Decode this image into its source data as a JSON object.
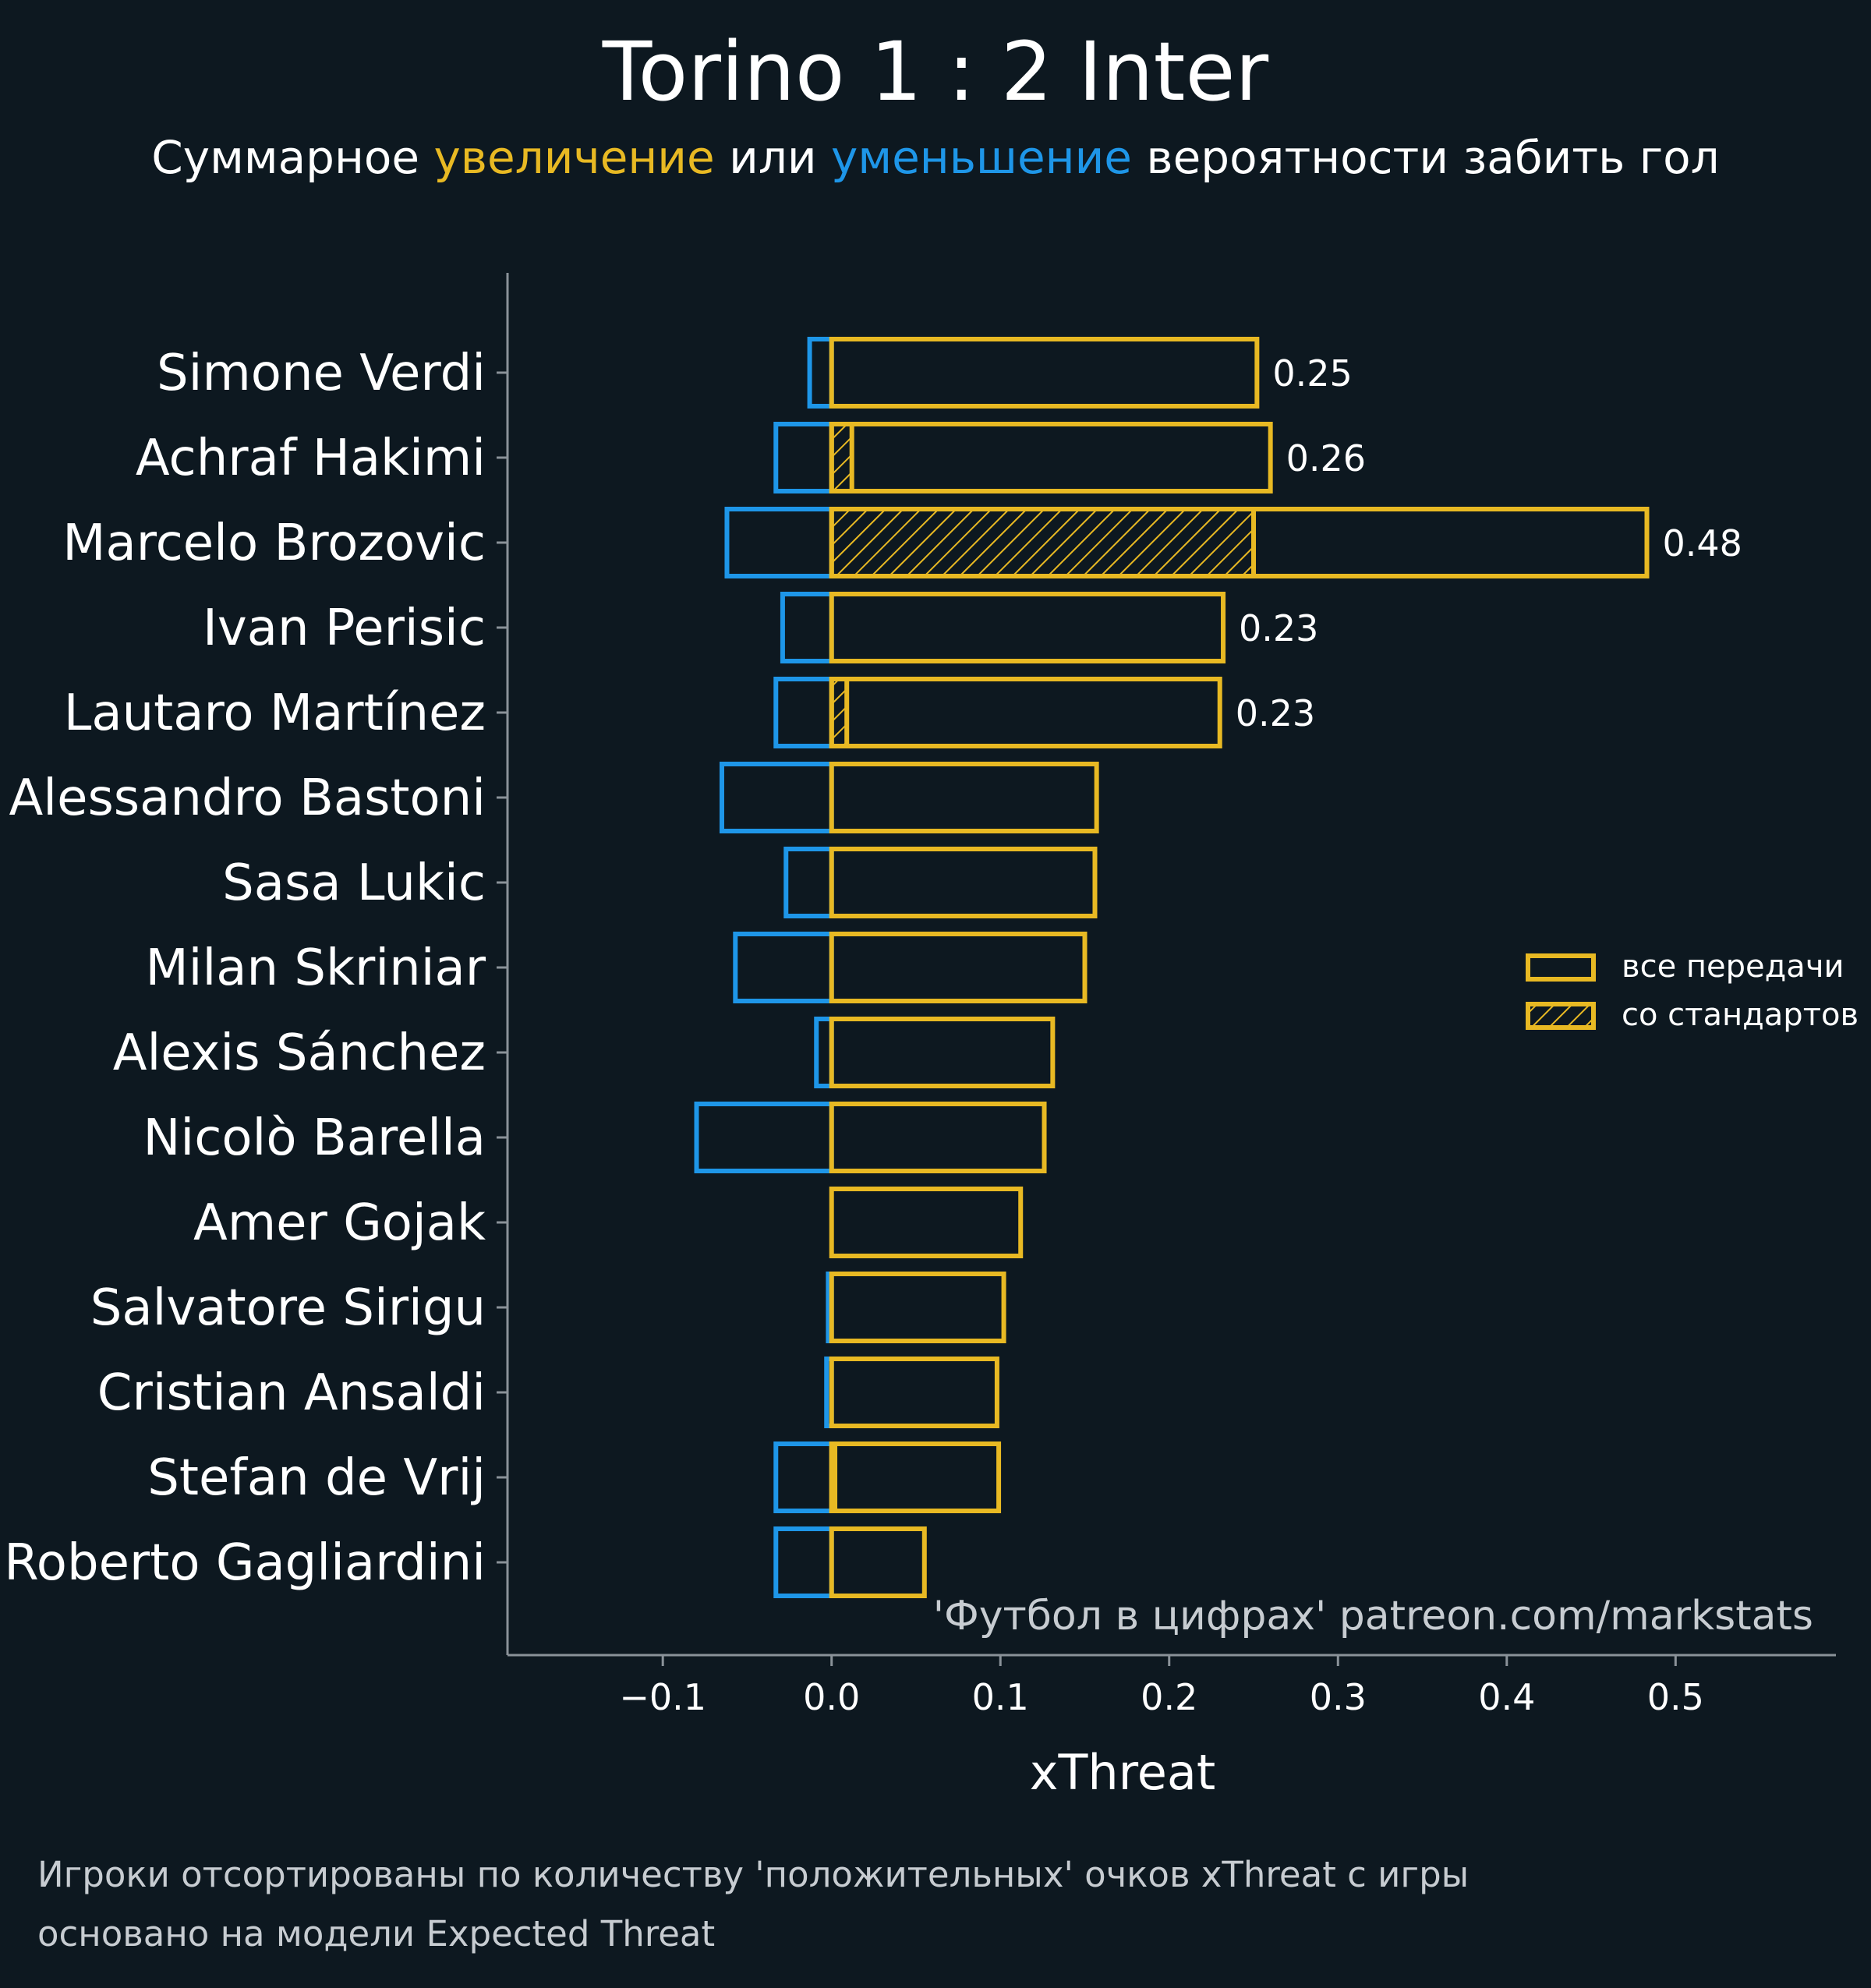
{
  "title": "Torino 1 : 2 Inter",
  "subtitle": {
    "prefix": "Суммарное ",
    "increase": "увеличение",
    "middle": " или ",
    "decrease": "уменьшение",
    "suffix": " вероятности забить гол"
  },
  "colors": {
    "background": "#0d1820",
    "positive": "#e8b923",
    "negative": "#1e96e8",
    "axis": "#8a9299",
    "text": "#ffffff",
    "muted": "#c7ccd1"
  },
  "chart_data": {
    "type": "bar",
    "orientation": "horizontal",
    "xlabel": "xThreat",
    "xlim": [
      -0.192,
      0.595
    ],
    "xticks": [
      -0.1,
      0.0,
      0.1,
      0.2,
      0.3,
      0.4,
      0.5
    ],
    "xtick_labels": [
      "−0.1",
      "0.0",
      "0.1",
      "0.2",
      "0.3",
      "0.4",
      "0.5"
    ],
    "categories": [
      "Simone Verdi",
      "Achraf Hakimi",
      "Marcelo Brozovic",
      "Ivan Perisic",
      "Lautaro Martínez",
      "Alessandro Bastoni",
      "Sasa Lukic",
      "Milan Skriniar",
      "Alexis Sánchez",
      "Nicolò Barella",
      "Amer Gojak",
      "Salvatore Sirigu",
      "Cristian Ansaldi",
      "Stefan de Vrij",
      "Roberto Gagliardini"
    ],
    "series": [
      {
        "name": "все передачи",
        "values": [
          0.252,
          0.26,
          0.483,
          0.232,
          0.23,
          0.157,
          0.156,
          0.15,
          0.131,
          0.126,
          0.112,
          0.102,
          0.098,
          0.099,
          0.055
        ]
      },
      {
        "name": "со стандартов",
        "values": [
          0.0,
          0.012,
          0.25,
          0.0,
          0.009,
          0.0,
          0.0,
          0.0,
          0.0,
          0.0,
          0.0,
          0.0,
          0.0,
          0.002,
          0.0
        ]
      },
      {
        "values": [
          -0.013,
          -0.033,
          -0.062,
          -0.029,
          -0.033,
          -0.065,
          -0.027,
          -0.057,
          -0.009,
          -0.08,
          0.0,
          -0.002,
          -0.003,
          -0.033,
          -0.033
        ]
      }
    ],
    "data_labels": [
      "0.25",
      "0.26",
      "0.48",
      "0.23",
      "0.23",
      "",
      "",
      "",
      "",
      "",
      "",
      "",
      "",
      "",
      ""
    ],
    "legend": {
      "position": "right",
      "entries": [
        "все передачи",
        "со стандартов"
      ]
    },
    "watermark": "'Футбол в цифрах' patreon.com/markstats",
    "grid": false
  },
  "footnotes": [
    "Игроки отсортированы по количеству 'положительных' очков xThreat с игры",
    "основано на модели Expected Threat"
  ]
}
